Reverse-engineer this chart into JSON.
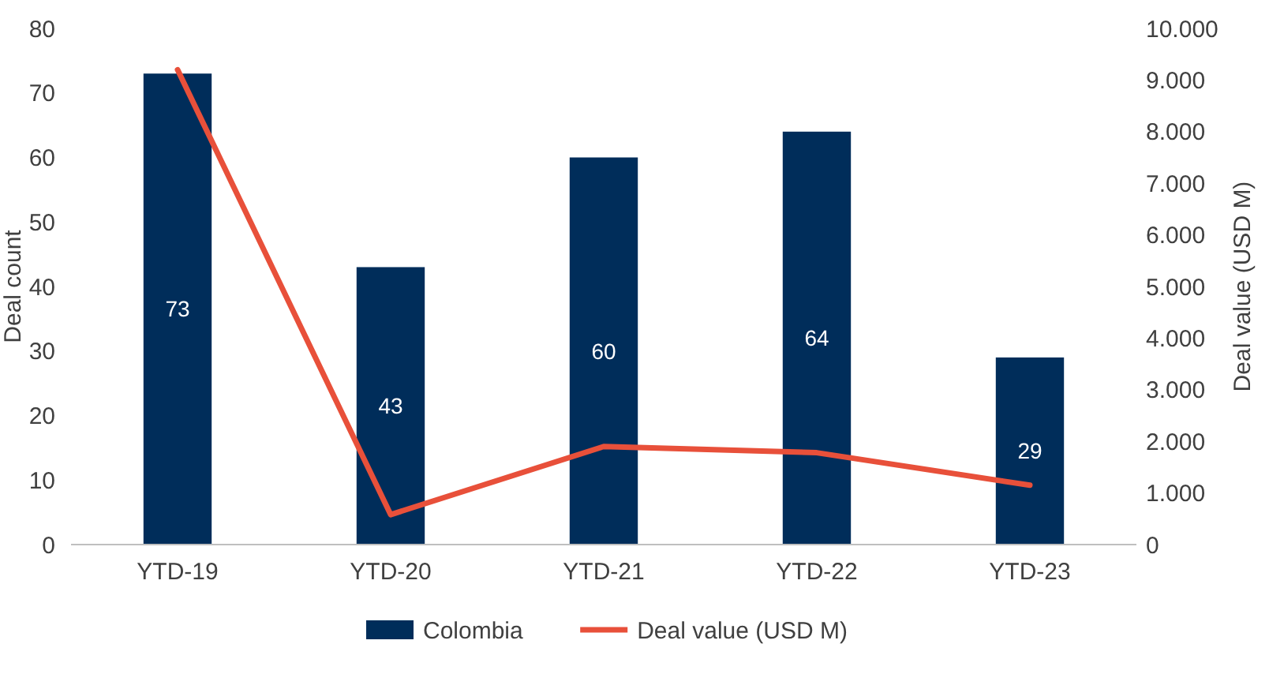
{
  "chart_data": {
    "type": "bar",
    "categories": [
      "YTD-19",
      "YTD-20",
      "YTD-21",
      "YTD-22",
      "YTD-23"
    ],
    "series": [
      {
        "name": "Colombia",
        "color": "#002d5a",
        "values": [
          73,
          43,
          60,
          64,
          29
        ],
        "value_labels": [
          "73",
          "43",
          "60",
          "64",
          "29"
        ]
      },
      {
        "name": "Deal value (USD M)",
        "type": "line",
        "axis": "y2",
        "color": "#e8503a",
        "values": [
          9200,
          580,
          1900,
          1780,
          1150
        ]
      }
    ],
    "ylabel": "Deal count",
    "y2label": "Deal value (USD M)",
    "ylim": [
      0,
      80
    ],
    "yticks": [
      0,
      10,
      20,
      30,
      40,
      50,
      60,
      70,
      80
    ],
    "y2lim": [
      0,
      10000
    ],
    "y2ticks": [
      {
        "value": 0,
        "label": "0"
      },
      {
        "value": 1000,
        "label": "1.000"
      },
      {
        "value": 2000,
        "label": "2.000"
      },
      {
        "value": 3000,
        "label": "3.000"
      },
      {
        "value": 4000,
        "label": "4.000"
      },
      {
        "value": 5000,
        "label": "5.000"
      },
      {
        "value": 6000,
        "label": "6.000"
      },
      {
        "value": 7000,
        "label": "7.000"
      },
      {
        "value": 8000,
        "label": "8.000"
      },
      {
        "value": 9000,
        "label": "9.000"
      },
      {
        "value": 10000,
        "label": "10.000"
      }
    ],
    "grid": false,
    "legend": "bottom"
  }
}
